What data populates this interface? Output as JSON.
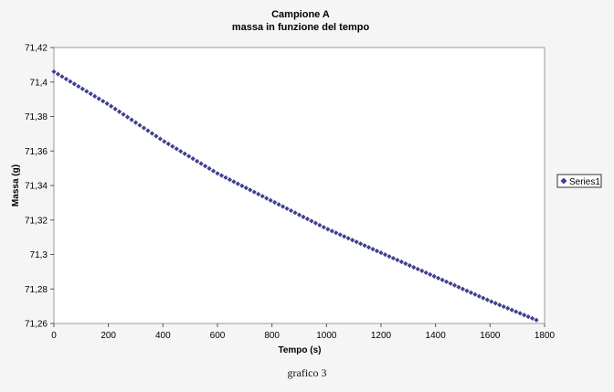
{
  "chart_data": {
    "type": "scatter",
    "title": "Campione A",
    "subtitle": "massa in funzione del tempo",
    "xlabel": "Tempo (s)",
    "ylabel": "Massa (g)",
    "xlim": [
      0,
      1800
    ],
    "ylim": [
      71.26,
      71.42
    ],
    "x_ticks": [
      "0",
      "200",
      "400",
      "600",
      "800",
      "1000",
      "1200",
      "1400",
      "1600",
      "1800"
    ],
    "y_ticks": [
      "71,26",
      "71,28",
      "71,3",
      "71,32",
      "71,34",
      "71,36",
      "71,38",
      "71,4",
      "71,42"
    ],
    "grid": false,
    "legend_position": "right",
    "series": [
      {
        "name": "Series1",
        "color": "#3f3f8f",
        "marker": "diamond",
        "x": [
          0,
          200,
          400,
          600,
          800,
          1000,
          1200,
          1400,
          1600,
          1770
        ],
        "y": [
          71.406,
          71.387,
          71.366,
          71.347,
          71.331,
          71.315,
          71.301,
          71.287,
          71.273,
          71.262
        ]
      }
    ]
  },
  "caption": "grafico 3"
}
